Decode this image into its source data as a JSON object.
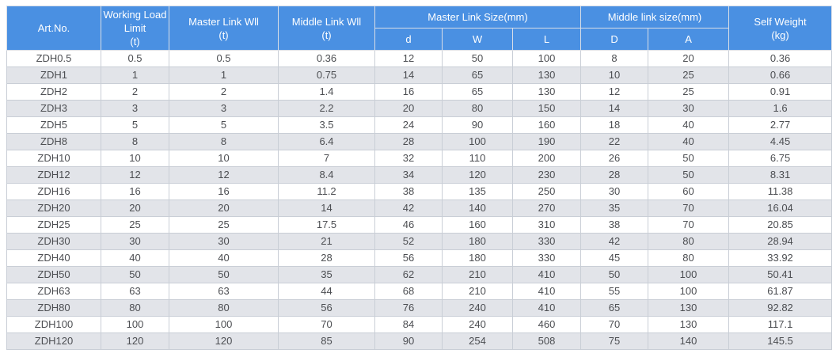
{
  "colors": {
    "header_bg": "#4a90e2",
    "header_text": "#ffffff",
    "header_border": "#d9dee7",
    "body_text": "#4c4e52",
    "border": "#c9ced6",
    "stripe": "#e2e4e9",
    "row_bg": "#ffffff",
    "page_bg": "#ffffff"
  },
  "table": {
    "headers": {
      "art_no": "Art.No.",
      "working_load_limit": "Working Load Limit\n(t)",
      "master_link_wll": "Master Link Wll\n(t)",
      "middle_link_wll": "Middle Link Wll\n(t)",
      "master_link_size": "Master Link Size(mm)",
      "middle_link_size": "Middle link size(mm)",
      "self_weight": "Self Weight\n(kg)"
    },
    "sub_headers": [
      "d",
      "W",
      "L",
      "D",
      "A"
    ],
    "rows": [
      [
        "ZDH0.5",
        "0.5",
        "0.5",
        "0.36",
        "12",
        "50",
        "100",
        "8",
        "20",
        "0.36"
      ],
      [
        "ZDH1",
        "1",
        "1",
        "0.75",
        "14",
        "65",
        "130",
        "10",
        "25",
        "0.66"
      ],
      [
        "ZDH2",
        "2",
        "2",
        "1.4",
        "16",
        "65",
        "130",
        "12",
        "25",
        "0.91"
      ],
      [
        "ZDH3",
        "3",
        "3",
        "2.2",
        "20",
        "80",
        "150",
        "14",
        "30",
        "1.6"
      ],
      [
        "ZDH5",
        "5",
        "5",
        "3.5",
        "24",
        "90",
        "160",
        "18",
        "40",
        "2.77"
      ],
      [
        "ZDH8",
        "8",
        "8",
        "6.4",
        "28",
        "100",
        "190",
        "22",
        "40",
        "4.45"
      ],
      [
        "ZDH10",
        "10",
        "10",
        "7",
        "32",
        "110",
        "200",
        "26",
        "50",
        "6.75"
      ],
      [
        "ZDH12",
        "12",
        "12",
        "8.4",
        "34",
        "120",
        "230",
        "28",
        "50",
        "8.31"
      ],
      [
        "ZDH16",
        "16",
        "16",
        "11.2",
        "38",
        "135",
        "250",
        "30",
        "60",
        "11.38"
      ],
      [
        "ZDH20",
        "20",
        "20",
        "14",
        "42",
        "140",
        "270",
        "35",
        "70",
        "16.04"
      ],
      [
        "ZDH25",
        "25",
        "25",
        "17.5",
        "46",
        "160",
        "310",
        "38",
        "70",
        "20.85"
      ],
      [
        "ZDH30",
        "30",
        "30",
        "21",
        "52",
        "180",
        "330",
        "42",
        "80",
        "28.94"
      ],
      [
        "ZDH40",
        "40",
        "40",
        "28",
        "56",
        "180",
        "330",
        "45",
        "80",
        "33.92"
      ],
      [
        "ZDH50",
        "50",
        "50",
        "35",
        "62",
        "210",
        "410",
        "50",
        "100",
        "50.41"
      ],
      [
        "ZDH63",
        "63",
        "63",
        "44",
        "68",
        "210",
        "410",
        "55",
        "100",
        "61.87"
      ],
      [
        "ZDH80",
        "80",
        "80",
        "56",
        "76",
        "240",
        "410",
        "65",
        "130",
        "92.82"
      ],
      [
        "ZDH100",
        "100",
        "100",
        "70",
        "84",
        "240",
        "460",
        "70",
        "130",
        "117.1"
      ],
      [
        "ZDH120",
        "120",
        "120",
        "85",
        "90",
        "254",
        "508",
        "75",
        "140",
        "145.5"
      ]
    ]
  }
}
